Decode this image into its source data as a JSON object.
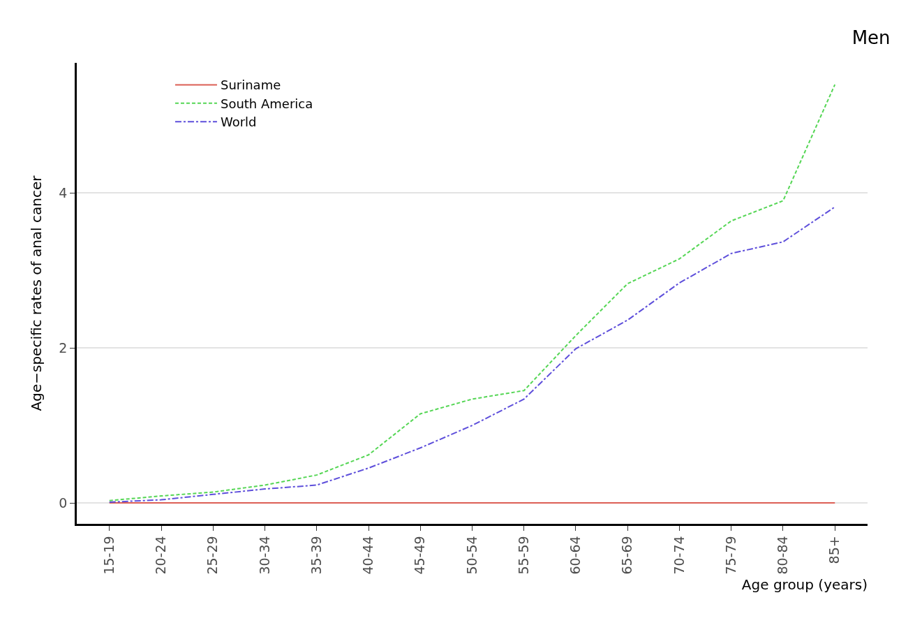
{
  "chart_data": {
    "type": "line",
    "title": "Men",
    "xlabel": "Age group (years)",
    "ylabel": "Age−specific rates of anal cancer",
    "categories": [
      "15-19",
      "20-24",
      "25-29",
      "30-34",
      "35-39",
      "40-44",
      "45-49",
      "50-54",
      "55-59",
      "60-64",
      "65-69",
      "70-74",
      "75-79",
      "80-84",
      "85+"
    ],
    "series": [
      {
        "name": "Suriname",
        "color": "#dc5f55",
        "line_style": "solid",
        "values": [
          0,
          0,
          0,
          0,
          0,
          0,
          0,
          0,
          0,
          0,
          0,
          0,
          0,
          0,
          0
        ]
      },
      {
        "name": "South America",
        "color": "#55d655",
        "line_style": "dashed",
        "values": [
          0.03,
          0.09,
          0.14,
          0.23,
          0.36,
          0.62,
          1.15,
          1.34,
          1.45,
          2.16,
          2.83,
          3.15,
          3.64,
          3.9,
          5.4
        ]
      },
      {
        "name": "World",
        "color": "#5e4fdb",
        "line_style": "dashdot",
        "values": [
          0.01,
          0.04,
          0.11,
          0.18,
          0.23,
          0.45,
          0.71,
          1.0,
          1.34,
          1.99,
          2.36,
          2.84,
          3.22,
          3.37,
          3.82
        ]
      }
    ],
    "ylim": [
      -0.27,
      5.68
    ],
    "yticks": [
      0,
      2,
      4
    ],
    "grid": "y",
    "legend": "top left",
    "marker": "none"
  }
}
